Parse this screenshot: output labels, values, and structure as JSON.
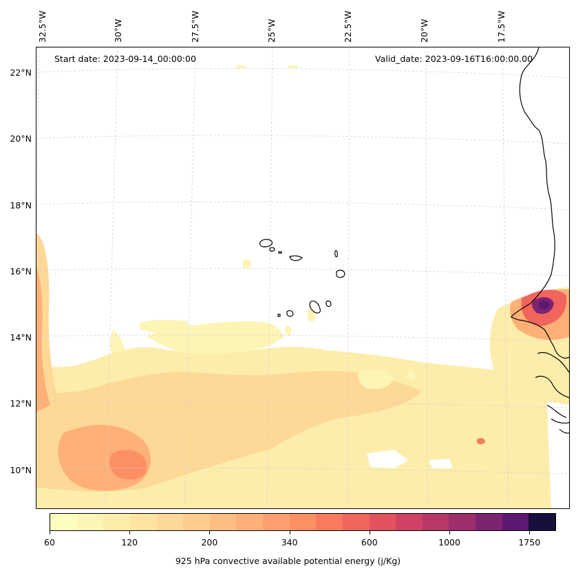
{
  "header": {
    "start_date": "Start date: 2023-09-14_00:00:00",
    "valid_date": "Valid_date: 2023-09-16T16:00:00.00"
  },
  "longitude_labels": [
    "32.5°W",
    "30°W",
    "27.5°W",
    "25°W",
    "22.5°W",
    "20°W",
    "17.5°W"
  ],
  "latitude_labels": [
    "22°N",
    "20°N",
    "18°N",
    "16°N",
    "14°N",
    "12°N",
    "10°N"
  ],
  "colorbar": {
    "title": "925 hPa convective available potential energy (j/Kg)",
    "tick_labels": [
      "60",
      "120",
      "200",
      "340",
      "600",
      "1000",
      "1750"
    ],
    "colors": [
      "#fcfdbf",
      "#fdf5b5",
      "#fdedab",
      "#fee3a1",
      "#fed897",
      "#fecc8c",
      "#febe81",
      "#feb077",
      "#fea06e",
      "#fd8f64",
      "#f97a5d",
      "#f0655c",
      "#e4525f",
      "#d04364",
      "#b73869",
      "#9c2e6c",
      "#7d2470",
      "#5c1972",
      "#170f3c"
    ]
  },
  "map": {
    "projection": "Lambert conformal",
    "gridlines": true,
    "coastline_color": "#000000"
  }
}
